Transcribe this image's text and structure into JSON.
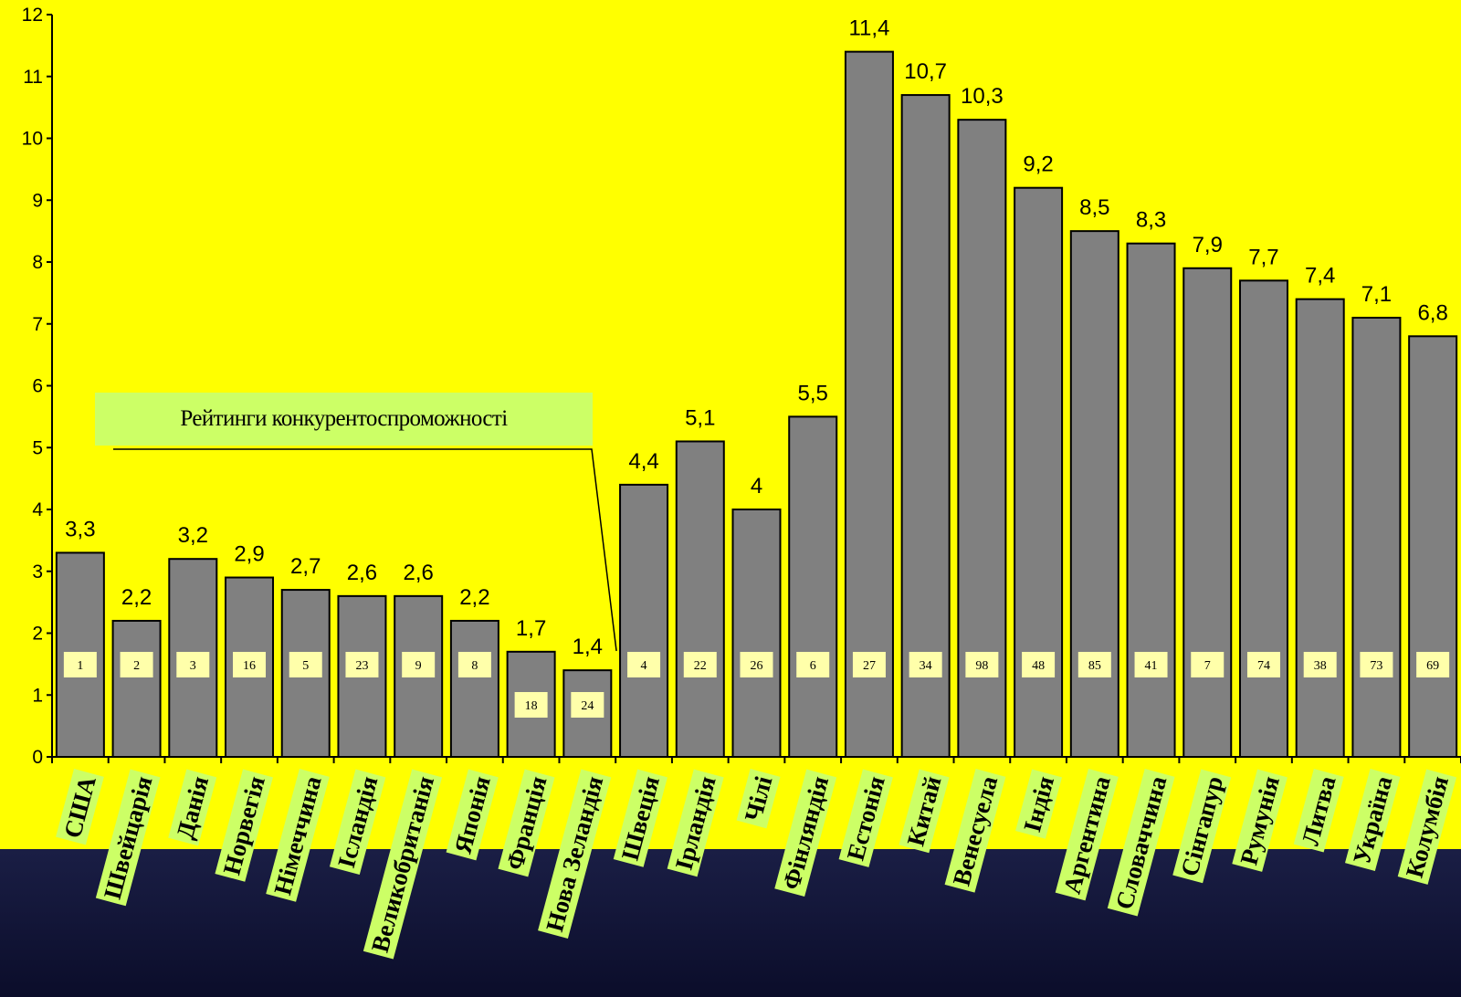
{
  "chart_data": {
    "type": "bar",
    "title": "",
    "xlabel": "",
    "ylabel": "",
    "ylim": [
      0,
      12
    ],
    "yticks": [
      "0",
      "1",
      "2",
      "3",
      "4",
      "5",
      "6",
      "7",
      "8",
      "9",
      "10",
      "11",
      "12"
    ],
    "grid": false,
    "legend": "none",
    "categories": [
      "США",
      "Швейцарія",
      "Данія",
      "Норвегія",
      "Німеччина",
      "Ісландія",
      "Великобританія",
      "Японія",
      "Франція",
      "Нова Зеландія",
      "Швеція",
      "Ірландія",
      "Чілі",
      "Фінляндія",
      "Естонія",
      "Китай",
      "Венесуела",
      "Індія",
      "Аргентина",
      "Словаччина",
      "Сінгапур",
      "Румунія",
      "Литва",
      "Україна",
      "Колумбія"
    ],
    "values": [
      3.3,
      2.2,
      3.2,
      2.9,
      2.7,
      2.6,
      2.6,
      2.2,
      1.7,
      1.4,
      4.4,
      5.1,
      4.0,
      5.5,
      11.4,
      10.7,
      10.3,
      9.2,
      8.5,
      8.3,
      7.9,
      7.7,
      7.4,
      7.1,
      6.8
    ],
    "value_labels": [
      "3,3",
      "2,2",
      "3,2",
      "2,9",
      "2,7",
      "2,6",
      "2,6",
      "2,2",
      "1,7",
      "1,4",
      "4,4",
      "5,1",
      "4",
      "5,5",
      "11,4",
      "10,7",
      "10,3",
      "9,2",
      "8,5",
      "8,3",
      "7,9",
      "7,7",
      "7,4",
      "7,1",
      "6,8"
    ],
    "ranks": [
      "1",
      "2",
      "3",
      "16",
      "5",
      "23",
      "9",
      "8",
      "18",
      "24",
      "4",
      "22",
      "26",
      "6",
      "27",
      "34",
      "98",
      "48",
      "85",
      "41",
      "7",
      "74",
      "38",
      "73",
      "69"
    ],
    "annotation": "Рейтинги конкурентоспроможності",
    "colors": {
      "background": "#ffff00",
      "footer": "#12153a",
      "bar": "#808080",
      "bar_stroke": "#000000",
      "rank_box": "#ffffaa",
      "category_box": "#ccff66"
    }
  }
}
